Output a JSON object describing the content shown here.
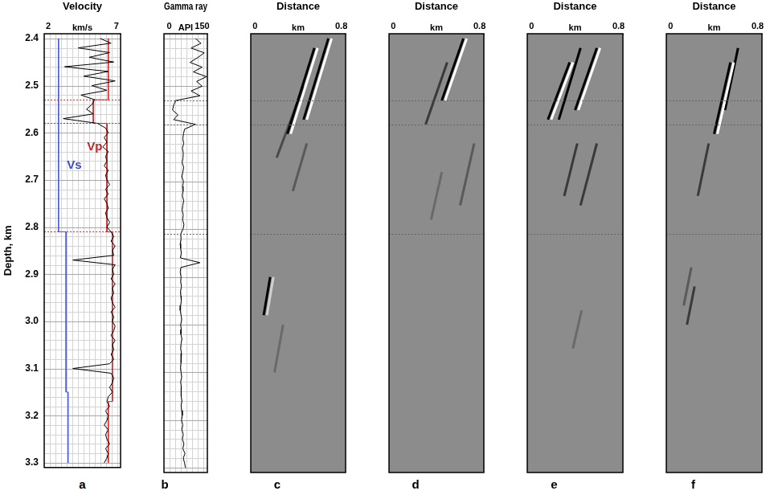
{
  "chart_data": [
    {
      "type": "line",
      "panel": "a",
      "xlabel": "Velocity",
      "x_unit": "km/s",
      "ylabel": "Depth, km",
      "xlim": [
        1.7,
        7.3
      ],
      "xticks": [
        2,
        7
      ],
      "ylim": [
        2.39,
        3.31
      ],
      "yticks": [
        2.4,
        2.5,
        2.6,
        2.7,
        2.8,
        2.9,
        {
          "value": 3,
          "label": "3.0"
        },
        3.1,
        3.2,
        3.3
      ],
      "grid": true,
      "tick_labels": true,
      "hlines": [
        2.53,
        2.58,
        2.81
      ],
      "annotations": [
        {
          "text": "Vp",
          "x": 5.4,
          "y": 2.63,
          "color": "#cc2020"
        },
        {
          "text": "Vs",
          "x": 3.9,
          "y": 2.67,
          "color": "#3a4ac8"
        }
      ],
      "series": [
        {
          "color": "#000000",
          "y": [
            2.4,
            2.41,
            2.42,
            2.43,
            2.44,
            2.45,
            2.46,
            2.47,
            2.48,
            2.49,
            2.5,
            2.51,
            2.52,
            2.53,
            2.54,
            2.55,
            2.56,
            2.57,
            2.58,
            2.59,
            2.6,
            2.61,
            2.62,
            2.63,
            2.64,
            2.65,
            2.66,
            2.67,
            2.68,
            2.69,
            2.7,
            2.71,
            2.72,
            2.73,
            2.74,
            2.75,
            2.76,
            2.77,
            2.78,
            2.79,
            2.8,
            2.81,
            2.82,
            2.83,
            2.84,
            2.85,
            2.86,
            2.87,
            2.88,
            2.89,
            2.9,
            2.91,
            2.92,
            2.93,
            2.94,
            2.95,
            2.96,
            2.97,
            2.98,
            2.99,
            3,
            3.01,
            3.02,
            3.03,
            3.04,
            3.05,
            3.06,
            3.07,
            3.08,
            3.09,
            3.1,
            3.11,
            3.12,
            3.13,
            3.14,
            3.15,
            3.16,
            3.17,
            3.18,
            3.19,
            3.2,
            3.21,
            3.22,
            3.23,
            3.24,
            3.25,
            3.26,
            3.27,
            3.28,
            3.29,
            3.3
          ],
          "x": [
            5.8,
            6.6,
            4.2,
            6.5,
            5.0,
            6.8,
            3.2,
            6.4,
            4.6,
            6.9,
            5.2,
            6.3,
            4.4,
            5.4,
            5.2,
            4.8,
            5.3,
            3.1,
            5.6,
            6.2,
            6.4,
            6.1,
            6.3,
            6.0,
            6.4,
            6.2,
            6.3,
            6.1,
            6.4,
            6.2,
            6.3,
            6.5,
            6.2,
            6.4,
            6.1,
            6.3,
            6.4,
            6.2,
            6.3,
            6.5,
            6.3,
            6.6,
            6.8,
            6.6,
            6.9,
            6.7,
            6.8,
            3.8,
            6.9,
            6.7,
            6.8,
            6.6,
            6.9,
            6.7,
            6.8,
            6.6,
            6.7,
            6.9,
            6.6,
            6.8,
            6.7,
            6.9,
            6.8,
            6.6,
            6.9,
            6.7,
            6.8,
            6.6,
            6.8,
            6.5,
            3.8,
            6.6,
            6.8,
            6.7,
            6.5,
            6.7,
            6.4,
            6.3,
            6.5,
            6.2,
            6.4,
            6.3,
            6.1,
            6.4,
            6.2,
            6.3,
            6.5,
            6.2,
            6.4,
            6.3,
            6.1
          ]
        },
        {
          "color": "#d42020",
          "y": [
            2.4,
            2.53,
            2.53,
            2.58,
            2.58,
            2.81,
            2.81,
            3.17,
            3.17,
            3.3
          ],
          "x": [
            6.4,
            6.4,
            5.3,
            5.3,
            6.3,
            6.3,
            6.7,
            6.7,
            6.4,
            6.4
          ]
        },
        {
          "color": "#4a5ad0",
          "y": [
            2.4,
            2.81,
            2.81,
            3.15,
            3.15,
            3.3
          ],
          "x": [
            2.75,
            2.75,
            3.3,
            3.3,
            3.45,
            3.45
          ]
        }
      ]
    },
    {
      "type": "line",
      "panel": "b",
      "xlabel": "Gamma ray",
      "x_unit": "API",
      "xlim": [
        -24,
        174
      ],
      "xticks": [
        0,
        150
      ],
      "ylim": [
        2.39,
        3.31
      ],
      "yticks": [
        2.4,
        2.5,
        2.6,
        2.7,
        2.8,
        2.9,
        {
          "value": 3,
          "label": "3.0"
        },
        3.1,
        3.2,
        3.3
      ],
      "grid": true,
      "tick_labels": "x",
      "hlines": [
        2.53,
        2.58,
        2.81
      ],
      "series": [
        {
          "color": "#000000",
          "y": [
            2.4,
            2.41,
            2.42,
            2.43,
            2.44,
            2.45,
            2.46,
            2.47,
            2.48,
            2.49,
            2.5,
            2.51,
            2.52,
            2.53,
            2.54,
            2.55,
            2.56,
            2.57,
            2.58,
            2.59,
            2.6,
            2.61,
            2.62,
            2.63,
            2.64,
            2.65,
            2.66,
            2.67,
            2.68,
            2.69,
            2.7,
            2.71,
            2.72,
            2.73,
            2.74,
            2.75,
            2.76,
            2.77,
            2.78,
            2.79,
            2.8,
            2.81,
            2.82,
            2.83,
            2.84,
            2.85,
            2.86,
            2.87,
            2.88,
            2.89,
            2.9,
            2.91,
            2.92,
            2.93,
            2.94,
            2.95,
            2.96,
            2.97,
            2.98,
            2.99,
            3,
            3.01,
            3.02,
            3.03,
            3.04,
            3.05,
            3.06,
            3.07,
            3.08,
            3.09,
            3.1,
            3.11,
            3.12,
            3.13,
            3.14,
            3.15,
            3.16,
            3.17,
            3.18,
            3.19,
            3.2,
            3.21,
            3.22,
            3.23,
            3.24,
            3.25,
            3.26,
            3.27,
            3.28,
            3.29,
            3.3
          ],
          "x": [
            120,
            145,
            100,
            160,
            130,
            95,
            150,
            110,
            170,
            125,
            150,
            100,
            140,
            30,
            20,
            15,
            40,
            20,
            120,
            70,
            65,
            62,
            66,
            60,
            64,
            63,
            59,
            66,
            62,
            58,
            65,
            61,
            63,
            60,
            66,
            62,
            59,
            64,
            61,
            67,
            63,
            52,
            54,
            50,
            52,
            55,
            51,
            140,
            53,
            50,
            54,
            52,
            56,
            51,
            53,
            55,
            52,
            50,
            54,
            57,
            52,
            55,
            53,
            58,
            54,
            52,
            56,
            53,
            55,
            51,
            54,
            57,
            52,
            55,
            53,
            56,
            58,
            54,
            57,
            60,
            56,
            62,
            58,
            64,
            60,
            67,
            62,
            72,
            64,
            70,
            74
          ]
        }
      ]
    },
    {
      "type": "line",
      "panel": "c",
      "xlabel": "Distance",
      "x_unit": "km",
      "xlim": [
        -0.04,
        0.84
      ],
      "xticks": [
        0,
        0.8
      ],
      "ylim": [
        2.39,
        3.31
      ],
      "yticks": [
        2.4,
        2.5,
        2.6,
        2.7,
        2.8,
        2.9,
        {
          "value": 3,
          "label": "3.0"
        },
        3.1,
        3.2,
        3.3
      ],
      "grid": false,
      "tick_labels": "x",
      "hlines": [
        2.53,
        2.58,
        2.81
      ],
      "series": [
        {
          "color": "#000000",
          "x": [
            0.3,
            0.55
          ],
          "y": [
            2.6,
            2.42
          ]
        },
        {
          "color": "#ffffff",
          "x": [
            0.33,
            0.58
          ],
          "y": [
            2.6,
            2.42
          ]
        },
        {
          "color": "#000000",
          "x": [
            0.45,
            0.68
          ],
          "y": [
            2.57,
            2.4
          ]
        },
        {
          "color": "#ffffff",
          "x": [
            0.48,
            0.71
          ],
          "y": [
            2.57,
            2.4
          ]
        },
        {
          "color": "#4a4a4a",
          "x": [
            0.2,
            0.45
          ],
          "y": [
            2.65,
            2.5
          ]
        },
        {
          "color": "#5a5a5a",
          "x": [
            0.35,
            0.48
          ],
          "y": [
            2.72,
            2.62
          ]
        },
        {
          "color": "#000000",
          "x": [
            0.08,
            0.14
          ],
          "y": [
            2.98,
            2.9
          ]
        },
        {
          "color": "#d0d0d0",
          "x": [
            0.11,
            0.17
          ],
          "y": [
            2.98,
            2.9
          ]
        },
        {
          "color": "#6a6a6a",
          "x": [
            0.18,
            0.26
          ],
          "y": [
            3.1,
            3.0
          ]
        }
      ]
    },
    {
      "type": "line",
      "panel": "d",
      "xlabel": "Distance",
      "x_unit": "km",
      "xlim": [
        -0.04,
        0.84
      ],
      "xticks": [
        0,
        0.8
      ],
      "ylim": [
        2.39,
        3.31
      ],
      "yticks": [
        2.4,
        2.5,
        2.6,
        2.7,
        2.8,
        2.9,
        {
          "value": 3,
          "label": "3.0"
        },
        3.1,
        3.2,
        3.3
      ],
      "grid": false,
      "tick_labels": "x",
      "hlines": [
        2.53,
        2.58,
        2.81
      ],
      "series": [
        {
          "color": "#000000",
          "x": [
            0.45,
            0.65
          ],
          "y": [
            2.53,
            2.4
          ]
        },
        {
          "color": "#ffffff",
          "x": [
            0.48,
            0.68
          ],
          "y": [
            2.53,
            2.4
          ]
        },
        {
          "color": "#3a3a3a",
          "x": [
            0.3,
            0.5
          ],
          "y": [
            2.58,
            2.45
          ]
        },
        {
          "color": "#5a5a5a",
          "x": [
            0.62,
            0.75
          ],
          "y": [
            2.75,
            2.62
          ]
        },
        {
          "color": "#6a6a6a",
          "x": [
            0.35,
            0.45
          ],
          "y": [
            2.78,
            2.68
          ]
        }
      ]
    },
    {
      "type": "line",
      "panel": "e",
      "xlabel": "Distance",
      "x_unit": "km",
      "xlim": [
        -0.04,
        0.84
      ],
      "xticks": [
        0,
        0.8
      ],
      "ylim": [
        2.39,
        3.31
      ],
      "yticks": [
        2.4,
        2.5,
        2.6,
        2.7,
        2.8,
        2.9,
        {
          "value": 3,
          "label": "3.0"
        },
        3.1,
        3.2,
        3.3
      ],
      "grid": false,
      "tick_labels": "x",
      "hlines": [
        2.53,
        2.58,
        2.81
      ],
      "series": [
        {
          "color": "#000000",
          "x": [
            0.15,
            0.35
          ],
          "y": [
            2.57,
            2.45
          ]
        },
        {
          "color": "#ffffff",
          "x": [
            0.18,
            0.38
          ],
          "y": [
            2.57,
            2.45
          ]
        },
        {
          "color": "#000000",
          "x": [
            0.25,
            0.45
          ],
          "y": [
            2.57,
            2.42
          ]
        },
        {
          "color": "#000000",
          "x": [
            0.4,
            0.6
          ],
          "y": [
            2.55,
            2.42
          ]
        },
        {
          "color": "#ffffff",
          "x": [
            0.43,
            0.63
          ],
          "y": [
            2.55,
            2.42
          ]
        },
        {
          "color": "#3a3a3a",
          "x": [
            0.45,
            0.6
          ],
          "y": [
            2.75,
            2.62
          ]
        },
        {
          "color": "#3a3a3a",
          "x": [
            0.3,
            0.42
          ],
          "y": [
            2.73,
            2.62
          ]
        },
        {
          "color": "#6a6a6a",
          "x": [
            0.38,
            0.46
          ],
          "y": [
            3.05,
            2.97
          ]
        }
      ]
    },
    {
      "type": "line",
      "panel": "f",
      "xlabel": "Distance",
      "x_unit": "km",
      "xlim": [
        -0.04,
        0.84
      ],
      "xticks": [
        0,
        0.8
      ],
      "ylim": [
        2.39,
        3.31
      ],
      "yticks": [
        2.4,
        2.5,
        2.6,
        2.7,
        2.8,
        2.9,
        {
          "value": 3,
          "label": "3.0"
        },
        3.1,
        3.2,
        3.3
      ],
      "grid": false,
      "tick_labels": "x",
      "hlines": [
        2.53,
        2.58,
        2.81
      ],
      "series": [
        {
          "color": "#000000",
          "x": [
            0.4,
            0.55
          ],
          "y": [
            2.6,
            2.45
          ]
        },
        {
          "color": "#ffffff",
          "x": [
            0.43,
            0.58
          ],
          "y": [
            2.6,
            2.45
          ]
        },
        {
          "color": "#000000",
          "x": [
            0.5,
            0.62
          ],
          "y": [
            2.55,
            2.42
          ]
        },
        {
          "color": "#3a3a3a",
          "x": [
            0.25,
            0.35
          ],
          "y": [
            2.73,
            2.62
          ]
        },
        {
          "color": "#3a3a3a",
          "x": [
            0.15,
            0.22
          ],
          "y": [
            3.0,
            2.92
          ]
        },
        {
          "color": "#5a5a5a",
          "x": [
            0.12,
            0.19
          ],
          "y": [
            2.96,
            2.88
          ]
        }
      ]
    }
  ]
}
